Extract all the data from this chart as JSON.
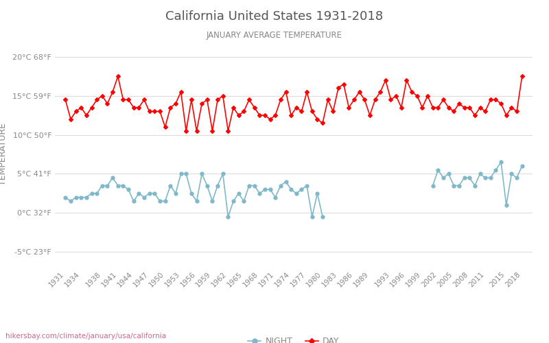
{
  "title": "California United States 1931-2018",
  "subtitle": "JANUARY AVERAGE TEMPERATURE",
  "ylabel": "TEMPERATURE",
  "watermark": "hikersbay.com/climate/january/usa/california",
  "years": [
    1931,
    1932,
    1933,
    1934,
    1935,
    1936,
    1937,
    1938,
    1939,
    1940,
    1941,
    1942,
    1943,
    1944,
    1945,
    1946,
    1947,
    1948,
    1949,
    1950,
    1951,
    1952,
    1953,
    1954,
    1955,
    1956,
    1957,
    1958,
    1959,
    1960,
    1961,
    1962,
    1963,
    1964,
    1965,
    1966,
    1967,
    1968,
    1969,
    1970,
    1971,
    1972,
    1973,
    1974,
    1975,
    1976,
    1977,
    1978,
    1979,
    1980,
    1981,
    1982,
    1983,
    1984,
    1985,
    1986,
    1987,
    1988,
    1989,
    1990,
    1991,
    1992,
    1993,
    1994,
    1995,
    1996,
    1997,
    1998,
    1999,
    2000,
    2001,
    2002,
    2003,
    2004,
    2005,
    2006,
    2007,
    2008,
    2009,
    2010,
    2011,
    2012,
    2013,
    2014,
    2015,
    2016,
    2017,
    2018
  ],
  "day_temps": [
    14.5,
    12.0,
    13.0,
    13.5,
    12.5,
    13.5,
    14.5,
    15.0,
    14.0,
    15.5,
    17.5,
    14.5,
    14.5,
    13.5,
    13.5,
    14.5,
    13.0,
    13.0,
    13.0,
    11.0,
    13.5,
    14.0,
    15.5,
    10.5,
    14.5,
    10.5,
    14.0,
    14.5,
    10.5,
    14.5,
    15.0,
    10.5,
    13.5,
    12.5,
    13.0,
    14.5,
    13.5,
    12.5,
    12.5,
    12.0,
    12.5,
    14.5,
    15.5,
    12.5,
    13.5,
    13.0,
    15.5,
    13.0,
    12.0,
    11.5,
    14.5,
    13.0,
    16.0,
    16.5,
    13.5,
    14.5,
    15.5,
    14.5,
    12.5,
    14.5,
    15.5,
    17.0,
    14.5,
    15.0,
    13.5,
    17.0,
    15.5,
    15.0,
    13.5,
    15.0,
    13.5,
    13.5,
    14.5,
    13.5,
    13.0,
    14.0,
    13.5,
    13.5,
    12.5,
    13.5,
    13.0,
    14.5,
    14.5,
    14.0,
    12.5,
    13.5,
    13.0,
    17.5
  ],
  "night_temps": [
    2.0,
    1.5,
    2.0,
    2.0,
    2.0,
    2.5,
    2.5,
    3.5,
    3.5,
    4.5,
    3.5,
    3.5,
    3.0,
    1.5,
    2.5,
    2.0,
    2.5,
    2.5,
    1.5,
    1.5,
    3.5,
    2.5,
    5.0,
    5.0,
    2.5,
    1.5,
    5.0,
    3.5,
    1.5,
    3.5,
    5.0,
    -0.5,
    1.5,
    2.5,
    1.5,
    3.5,
    3.5,
    2.5,
    3.0,
    3.0,
    2.0,
    3.5,
    4.0,
    3.0,
    2.5,
    3.0,
    3.5,
    -0.5,
    2.5,
    -0.5,
    null,
    null,
    null,
    null,
    null,
    null,
    null,
    null,
    null,
    null,
    null,
    null,
    null,
    null,
    null,
    null,
    null,
    null,
    null,
    null,
    3.5,
    5.5,
    4.5,
    5.0,
    3.5,
    3.5,
    4.5,
    4.5,
    3.5,
    5.0,
    4.5,
    4.5,
    5.5,
    6.5,
    1.0,
    5.0,
    4.5,
    6.0
  ],
  "y_ticks_c": [
    -5,
    0,
    5,
    10,
    15,
    20
  ],
  "y_ticks_f": [
    23,
    32,
    41,
    50,
    59,
    68
  ],
  "ylim": [
    -7,
    22
  ],
  "day_color": "#ff0000",
  "night_color": "#7eb8c9",
  "grid_color": "#dddddd",
  "title_color": "#555555",
  "subtitle_color": "#888888",
  "ylabel_color": "#888888",
  "tick_color": "#888888",
  "watermark_color": "#cc6688",
  "background_color": "#ffffff"
}
